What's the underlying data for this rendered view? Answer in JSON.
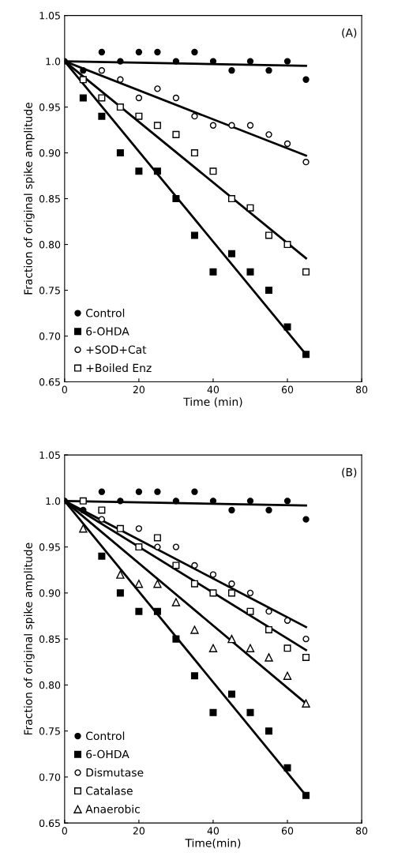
{
  "chart_data": [
    {
      "type": "scatter",
      "xlabel": "Time (min)",
      "ylabel": "Fraction of original spike amplitude",
      "annotations": [
        "(A)"
      ],
      "xlim": [
        0,
        80
      ],
      "xticks": [
        0,
        20,
        40,
        60,
        80
      ],
      "ylim": [
        0.65,
        1.05
      ],
      "yticks": [
        {
          "value": 0.65,
          "label": "0.65"
        },
        {
          "value": 0.7,
          "label": "0.70"
        },
        {
          "value": 0.75,
          "label": "0.75"
        },
        {
          "value": 0.8,
          "label": "0.80"
        },
        {
          "value": 0.85,
          "label": "0.85"
        },
        {
          "value": 0.9,
          "label": "0.90"
        },
        {
          "value": 0.95,
          "label": "0.95"
        },
        {
          "value": 1.0,
          "label": "1.0"
        },
        {
          "value": 1.05,
          "label": "1.05"
        }
      ],
      "legend": "bottom left",
      "grid": false,
      "x": [
        0,
        5,
        10,
        15,
        20,
        25,
        30,
        35,
        40,
        45,
        50,
        55,
        60,
        65
      ],
      "series": [
        {
          "name": "Control",
          "color": "#000000",
          "marker": "circle",
          "values": [
            1.0,
            0.99,
            1.01,
            1.0,
            1.01,
            1.01,
            1.0,
            1.01,
            1.0,
            0.99,
            1.0,
            0.99,
            1.0,
            0.98
          ]
        },
        {
          "name": "6-OHDA",
          "color": "#000000",
          "marker": "square",
          "x": [
            5,
            10,
            15,
            20,
            25,
            30,
            35,
            40,
            45,
            50,
            55,
            60,
            65
          ],
          "values": [
            0.96,
            0.94,
            0.9,
            0.88,
            0.88,
            0.85,
            0.81,
            0.77,
            0.79,
            0.77,
            0.75,
            0.71,
            0.68
          ]
        },
        {
          "name": "+SOD+Cat",
          "color": "#ffffff",
          "marker": "circle",
          "x": [
            10,
            15,
            20,
            25,
            30,
            35,
            40,
            45,
            50,
            55,
            60,
            65
          ],
          "values": [
            0.99,
            0.98,
            0.96,
            0.97,
            0.96,
            0.94,
            0.93,
            0.93,
            0.93,
            0.92,
            0.91,
            0.89
          ]
        },
        {
          "name": "+Boiled Enz",
          "color": "#ffffff",
          "marker": "square",
          "x": [
            5,
            10,
            15,
            20,
            25,
            30,
            35,
            40,
            45,
            50,
            55,
            60,
            65
          ],
          "values": [
            0.98,
            0.96,
            0.95,
            0.94,
            0.93,
            0.92,
            0.9,
            0.88,
            0.85,
            0.84,
            0.81,
            0.8,
            0.77
          ]
        },
        {
          "type": "line",
          "color": "#000000",
          "x": [
            0,
            65
          ],
          "values": [
            1.0,
            0.995
          ]
        },
        {
          "type": "line",
          "color": "#000000",
          "x": [
            0,
            65
          ],
          "values": [
            1.0,
            0.68
          ]
        },
        {
          "type": "line",
          "color": "#000000",
          "x": [
            0,
            65
          ],
          "values": [
            1.0,
            0.897
          ]
        },
        {
          "type": "line",
          "color": "#000000",
          "x": [
            0,
            65
          ],
          "values": [
            1.0,
            0.785
          ]
        }
      ]
    },
    {
      "type": "scatter",
      "xlabel": "Time(min)",
      "ylabel": "Fraction of original spike amplitude",
      "annotations": [
        "(B)"
      ],
      "xlim": [
        0,
        80
      ],
      "xticks": [
        0,
        20,
        40,
        60,
        80
      ],
      "ylim": [
        0.65,
        1.05
      ],
      "yticks": [
        {
          "value": 0.65,
          "label": "0.65"
        },
        {
          "value": 0.7,
          "label": "0.70"
        },
        {
          "value": 0.75,
          "label": "0.75"
        },
        {
          "value": 0.8,
          "label": "0.80"
        },
        {
          "value": 0.85,
          "label": "0.85"
        },
        {
          "value": 0.9,
          "label": "0.90"
        },
        {
          "value": 0.95,
          "label": "0.95"
        },
        {
          "value": 1.0,
          "label": "1.0"
        },
        {
          "value": 1.05,
          "label": "1.05"
        }
      ],
      "legend": "bottom left",
      "grid": false,
      "x": [
        0,
        5,
        10,
        15,
        20,
        25,
        30,
        35,
        40,
        45,
        50,
        55,
        60,
        65
      ],
      "series": [
        {
          "name": "Control",
          "color": "#000000",
          "marker": "circle",
          "values": [
            1.0,
            0.99,
            1.01,
            1.0,
            1.01,
            1.01,
            1.0,
            1.01,
            1.0,
            0.99,
            1.0,
            0.99,
            1.0,
            0.98
          ]
        },
        {
          "name": "6-OHDA",
          "color": "#000000",
          "marker": "square",
          "x": [
            10,
            15,
            20,
            25,
            30,
            35,
            40,
            45,
            50,
            55,
            60,
            65
          ],
          "values": [
            0.94,
            0.9,
            0.88,
            0.88,
            0.85,
            0.81,
            0.77,
            0.79,
            0.77,
            0.75,
            0.71,
            0.68
          ]
        },
        {
          "name": "Dismutase",
          "color": "#ffffff",
          "marker": "circle",
          "x": [
            10,
            20,
            25,
            30,
            35,
            40,
            45,
            50,
            55,
            60,
            65
          ],
          "values": [
            0.98,
            0.97,
            0.95,
            0.95,
            0.93,
            0.92,
            0.91,
            0.9,
            0.88,
            0.87,
            0.85
          ]
        },
        {
          "name": "Catalase",
          "color": "#ffffff",
          "marker": "square",
          "x": [
            5,
            10,
            15,
            20,
            25,
            30,
            35,
            40,
            45,
            50,
            55,
            60,
            65
          ],
          "values": [
            1.0,
            0.99,
            0.97,
            0.95,
            0.96,
            0.93,
            0.91,
            0.9,
            0.9,
            0.88,
            0.86,
            0.84,
            0.83
          ]
        },
        {
          "name": "Anaerobic",
          "color": "#ffffff",
          "marker": "triangle",
          "x": [
            5,
            15,
            20,
            25,
            30,
            35,
            40,
            45,
            50,
            55,
            60,
            65
          ],
          "values": [
            0.97,
            0.92,
            0.91,
            0.91,
            0.89,
            0.86,
            0.84,
            0.85,
            0.84,
            0.83,
            0.81,
            0.78
          ]
        },
        {
          "type": "line",
          "color": "#000000",
          "x": [
            0,
            65
          ],
          "values": [
            1.0,
            0.995
          ]
        },
        {
          "type": "line",
          "color": "#000000",
          "x": [
            0,
            65
          ],
          "values": [
            1.0,
            0.68
          ]
        },
        {
          "type": "line",
          "color": "#000000",
          "x": [
            0,
            65
          ],
          "values": [
            1.0,
            0.863
          ]
        },
        {
          "type": "line",
          "color": "#000000",
          "x": [
            0,
            65
          ],
          "values": [
            1.0,
            0.838
          ]
        },
        {
          "type": "line",
          "color": "#000000",
          "x": [
            0,
            65
          ],
          "values": [
            1.0,
            0.78
          ]
        }
      ]
    }
  ]
}
